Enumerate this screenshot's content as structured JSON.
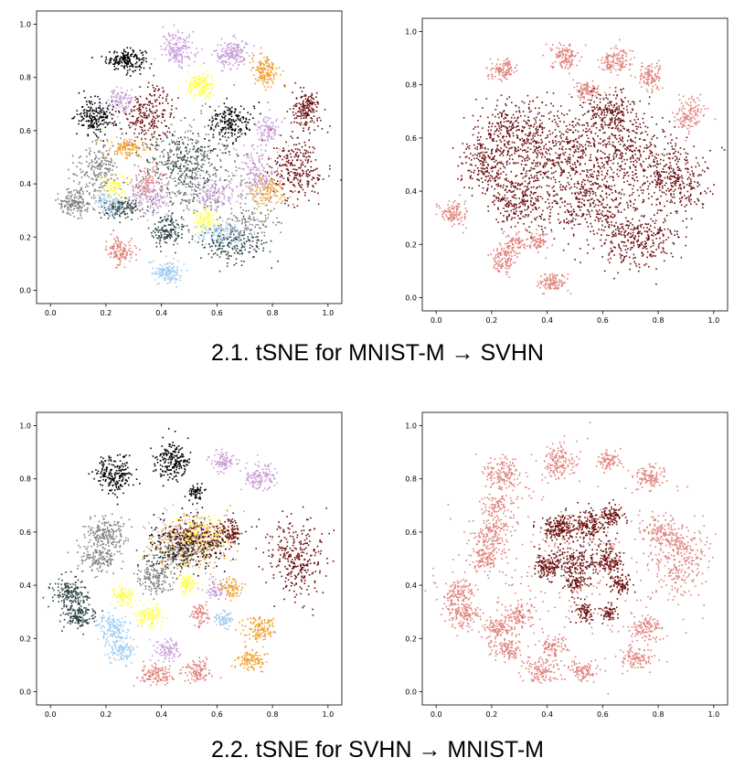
{
  "captions": {
    "row1": "2.1. tSNE for MNIST-M → SVHN",
    "row2": "2.2. tSNE for SVHN → MNIST-M"
  },
  "chart_data": [
    {
      "type": "scatter",
      "title": "",
      "xlabel": "",
      "ylabel": "",
      "xlim": [
        -0.05,
        1.05
      ],
      "ylim": [
        -0.05,
        1.05
      ],
      "xticks": [
        "0.0",
        "0.2",
        "0.4",
        "0.6",
        "0.8",
        "1.0"
      ],
      "yticks": [
        "0.0",
        "0.2",
        "0.4",
        "0.6",
        "0.8",
        "1.0"
      ],
      "grid": false,
      "coloring": "class",
      "clusters": [
        {
          "x": 0.27,
          "y": 0.87,
          "sx": 0.035,
          "sy": 0.02,
          "n": 180,
          "color": "#000000"
        },
        {
          "x": 0.46,
          "y": 0.91,
          "sx": 0.03,
          "sy": 0.03,
          "n": 170,
          "color": "#c89bd8"
        },
        {
          "x": 0.65,
          "y": 0.89,
          "sx": 0.03,
          "sy": 0.028,
          "n": 170,
          "color": "#c89bd8"
        },
        {
          "x": 0.77,
          "y": 0.83,
          "sx": 0.025,
          "sy": 0.03,
          "n": 150,
          "color": "#f0a030"
        },
        {
          "x": 0.54,
          "y": 0.77,
          "sx": 0.025,
          "sy": 0.025,
          "n": 150,
          "color": "#ffff44"
        },
        {
          "x": 0.92,
          "y": 0.68,
          "sx": 0.025,
          "sy": 0.035,
          "n": 170,
          "color": "#6b0d0d"
        },
        {
          "x": 0.16,
          "y": 0.66,
          "sx": 0.035,
          "sy": 0.035,
          "n": 190,
          "color": "#000000"
        },
        {
          "x": 0.35,
          "y": 0.66,
          "sx": 0.05,
          "sy": 0.05,
          "n": 240,
          "color": "#6b0d0d"
        },
        {
          "x": 0.25,
          "y": 0.72,
          "sx": 0.025,
          "sy": 0.02,
          "n": 90,
          "color": "#c89bd8"
        },
        {
          "x": 0.65,
          "y": 0.63,
          "sx": 0.04,
          "sy": 0.04,
          "n": 200,
          "color": "#000000"
        },
        {
          "x": 0.78,
          "y": 0.61,
          "sx": 0.02,
          "sy": 0.025,
          "n": 90,
          "color": "#c89bd8"
        },
        {
          "x": 0.88,
          "y": 0.46,
          "sx": 0.05,
          "sy": 0.06,
          "n": 260,
          "color": "#6b0d0d"
        },
        {
          "x": 0.28,
          "y": 0.54,
          "sx": 0.04,
          "sy": 0.02,
          "n": 120,
          "color": "#f0a030"
        },
        {
          "x": 0.17,
          "y": 0.45,
          "sx": 0.04,
          "sy": 0.05,
          "n": 200,
          "color": "#808080"
        },
        {
          "x": 0.08,
          "y": 0.33,
          "sx": 0.03,
          "sy": 0.025,
          "n": 160,
          "color": "#808080"
        },
        {
          "x": 0.25,
          "y": 0.31,
          "sx": 0.04,
          "sy": 0.02,
          "n": 140,
          "color": "#2f4444"
        },
        {
          "x": 0.42,
          "y": 0.23,
          "sx": 0.03,
          "sy": 0.025,
          "n": 150,
          "color": "#2f4444"
        },
        {
          "x": 0.65,
          "y": 0.18,
          "sx": 0.06,
          "sy": 0.03,
          "n": 200,
          "color": "#2f4444"
        },
        {
          "x": 0.25,
          "y": 0.15,
          "sx": 0.025,
          "sy": 0.025,
          "n": 130,
          "color": "#e0807a"
        },
        {
          "x": 0.42,
          "y": 0.07,
          "sx": 0.03,
          "sy": 0.02,
          "n": 140,
          "color": "#9ecbf0"
        },
        {
          "x": 0.62,
          "y": 0.22,
          "sx": 0.05,
          "sy": 0.02,
          "n": 140,
          "color": "#9ecbf0"
        },
        {
          "x": 0.78,
          "y": 0.38,
          "sx": 0.03,
          "sy": 0.03,
          "n": 140,
          "color": "#f0a030"
        },
        {
          "x": 0.58,
          "y": 0.36,
          "sx": 0.04,
          "sy": 0.03,
          "n": 140,
          "color": "#c89bd8"
        },
        {
          "x": 0.35,
          "y": 0.36,
          "sx": 0.04,
          "sy": 0.035,
          "n": 140,
          "color": "#c89bd8"
        },
        {
          "x": 0.55,
          "y": 0.27,
          "sx": 0.02,
          "sy": 0.02,
          "n": 90,
          "color": "#ffff44"
        },
        {
          "x": 0.23,
          "y": 0.39,
          "sx": 0.025,
          "sy": 0.02,
          "n": 80,
          "color": "#ffff44"
        },
        {
          "x": 0.48,
          "y": 0.48,
          "sx": 0.06,
          "sy": 0.06,
          "n": 240,
          "color": "#2f4444"
        },
        {
          "x": 0.5,
          "y": 0.44,
          "sx": 0.14,
          "sy": 0.1,
          "n": 380,
          "color": "#808080"
        },
        {
          "x": 0.74,
          "y": 0.44,
          "sx": 0.04,
          "sy": 0.05,
          "n": 150,
          "color": "#c89bd8"
        },
        {
          "x": 0.35,
          "y": 0.42,
          "sx": 0.03,
          "sy": 0.03,
          "n": 80,
          "color": "#e0807a"
        },
        {
          "x": 0.2,
          "y": 0.33,
          "sx": 0.03,
          "sy": 0.02,
          "n": 80,
          "color": "#9ecbf0"
        },
        {
          "x": 0.72,
          "y": 0.26,
          "sx": 0.05,
          "sy": 0.03,
          "n": 100,
          "color": "#808080"
        }
      ]
    },
    {
      "type": "scatter",
      "title": "",
      "xlabel": "",
      "ylabel": "",
      "xlim": [
        -0.05,
        1.05
      ],
      "ylim": [
        -0.05,
        1.05
      ],
      "xticks": [
        "0.0",
        "0.2",
        "0.4",
        "0.6",
        "0.8",
        "1.0"
      ],
      "yticks": [
        "0.0",
        "0.2",
        "0.4",
        "0.6",
        "0.8",
        "1.0"
      ],
      "grid": false,
      "coloring": "domain",
      "clusters": [
        {
          "x": 0.24,
          "y": 0.86,
          "sx": 0.025,
          "sy": 0.018,
          "n": 110,
          "color": "#e0807a"
        },
        {
          "x": 0.46,
          "y": 0.91,
          "sx": 0.025,
          "sy": 0.025,
          "n": 120,
          "color": "#e0807a"
        },
        {
          "x": 0.64,
          "y": 0.89,
          "sx": 0.03,
          "sy": 0.025,
          "n": 130,
          "color": "#e0807a"
        },
        {
          "x": 0.77,
          "y": 0.83,
          "sx": 0.022,
          "sy": 0.025,
          "n": 110,
          "color": "#e0807a"
        },
        {
          "x": 0.54,
          "y": 0.78,
          "sx": 0.022,
          "sy": 0.02,
          "n": 100,
          "color": "#e0807a"
        },
        {
          "x": 0.91,
          "y": 0.69,
          "sx": 0.025,
          "sy": 0.03,
          "n": 120,
          "color": "#e0807a"
        },
        {
          "x": 0.06,
          "y": 0.32,
          "sx": 0.025,
          "sy": 0.025,
          "n": 110,
          "color": "#e0807a"
        },
        {
          "x": 0.24,
          "y": 0.15,
          "sx": 0.022,
          "sy": 0.025,
          "n": 110,
          "color": "#e0807a"
        },
        {
          "x": 0.42,
          "y": 0.06,
          "sx": 0.025,
          "sy": 0.018,
          "n": 110,
          "color": "#e0807a"
        },
        {
          "x": 0.37,
          "y": 0.21,
          "sx": 0.02,
          "sy": 0.02,
          "n": 70,
          "color": "#e0807a"
        },
        {
          "x": 0.28,
          "y": 0.21,
          "sx": 0.02,
          "sy": 0.02,
          "n": 70,
          "color": "#e0807a"
        },
        {
          "x": 0.28,
          "y": 0.62,
          "sx": 0.07,
          "sy": 0.07,
          "n": 340,
          "color": "#6b0d0d"
        },
        {
          "x": 0.45,
          "y": 0.55,
          "sx": 0.08,
          "sy": 0.08,
          "n": 360,
          "color": "#6b0d0d"
        },
        {
          "x": 0.68,
          "y": 0.55,
          "sx": 0.08,
          "sy": 0.08,
          "n": 360,
          "color": "#6b0d0d"
        },
        {
          "x": 0.85,
          "y": 0.44,
          "sx": 0.06,
          "sy": 0.07,
          "n": 320,
          "color": "#6b0d0d"
        },
        {
          "x": 0.3,
          "y": 0.38,
          "sx": 0.06,
          "sy": 0.06,
          "n": 300,
          "color": "#6b0d0d"
        },
        {
          "x": 0.55,
          "y": 0.35,
          "sx": 0.08,
          "sy": 0.06,
          "n": 320,
          "color": "#6b0d0d"
        },
        {
          "x": 0.72,
          "y": 0.22,
          "sx": 0.07,
          "sy": 0.05,
          "n": 300,
          "color": "#6b0d0d"
        },
        {
          "x": 0.17,
          "y": 0.5,
          "sx": 0.04,
          "sy": 0.05,
          "n": 180,
          "color": "#6b0d0d"
        },
        {
          "x": 0.62,
          "y": 0.7,
          "sx": 0.06,
          "sy": 0.04,
          "n": 200,
          "color": "#6b0d0d"
        }
      ]
    },
    {
      "type": "scatter",
      "title": "",
      "xlabel": "",
      "ylabel": "",
      "xlim": [
        -0.05,
        1.05
      ],
      "ylim": [
        -0.05,
        1.05
      ],
      "xticks": [
        "0.0",
        "0.2",
        "0.4",
        "0.6",
        "0.8",
        "1.0"
      ],
      "yticks": [
        "0.0",
        "0.2",
        "0.4",
        "0.6",
        "0.8",
        "1.0"
      ],
      "grid": false,
      "coloring": "class",
      "clusters": [
        {
          "x": 0.23,
          "y": 0.82,
          "sx": 0.035,
          "sy": 0.035,
          "n": 200,
          "color": "#000000"
        },
        {
          "x": 0.44,
          "y": 0.87,
          "sx": 0.03,
          "sy": 0.035,
          "n": 190,
          "color": "#000000"
        },
        {
          "x": 0.62,
          "y": 0.87,
          "sx": 0.02,
          "sy": 0.02,
          "n": 90,
          "color": "#c89bd8"
        },
        {
          "x": 0.75,
          "y": 0.81,
          "sx": 0.03,
          "sy": 0.025,
          "n": 130,
          "color": "#c89bd8"
        },
        {
          "x": 0.52,
          "y": 0.75,
          "sx": 0.015,
          "sy": 0.015,
          "n": 60,
          "color": "#000000"
        },
        {
          "x": 0.88,
          "y": 0.5,
          "sx": 0.05,
          "sy": 0.07,
          "n": 300,
          "color": "#6b0d0d"
        },
        {
          "x": 0.64,
          "y": 0.6,
          "sx": 0.025,
          "sy": 0.03,
          "n": 110,
          "color": "#6b0d0d"
        },
        {
          "x": 0.2,
          "y": 0.6,
          "sx": 0.035,
          "sy": 0.03,
          "n": 170,
          "color": "#808080"
        },
        {
          "x": 0.17,
          "y": 0.51,
          "sx": 0.035,
          "sy": 0.03,
          "n": 160,
          "color": "#808080"
        },
        {
          "x": 0.07,
          "y": 0.37,
          "sx": 0.035,
          "sy": 0.03,
          "n": 170,
          "color": "#2f4444"
        },
        {
          "x": 0.1,
          "y": 0.29,
          "sx": 0.03,
          "sy": 0.025,
          "n": 150,
          "color": "#2f4444"
        },
        {
          "x": 0.37,
          "y": 0.43,
          "sx": 0.03,
          "sy": 0.03,
          "n": 150,
          "color": "#808080"
        },
        {
          "x": 0.26,
          "y": 0.36,
          "sx": 0.02,
          "sy": 0.02,
          "n": 90,
          "color": "#ffff44"
        },
        {
          "x": 0.35,
          "y": 0.29,
          "sx": 0.025,
          "sy": 0.025,
          "n": 110,
          "color": "#ffff44"
        },
        {
          "x": 0.49,
          "y": 0.41,
          "sx": 0.02,
          "sy": 0.018,
          "n": 80,
          "color": "#ffff44"
        },
        {
          "x": 0.22,
          "y": 0.24,
          "sx": 0.03,
          "sy": 0.025,
          "n": 130,
          "color": "#9ecbf0"
        },
        {
          "x": 0.25,
          "y": 0.16,
          "sx": 0.03,
          "sy": 0.02,
          "n": 110,
          "color": "#9ecbf0"
        },
        {
          "x": 0.62,
          "y": 0.28,
          "sx": 0.018,
          "sy": 0.018,
          "n": 70,
          "color": "#9ecbf0"
        },
        {
          "x": 0.42,
          "y": 0.16,
          "sx": 0.025,
          "sy": 0.02,
          "n": 90,
          "color": "#c89bd8"
        },
        {
          "x": 0.59,
          "y": 0.39,
          "sx": 0.02,
          "sy": 0.02,
          "n": 70,
          "color": "#c89bd8"
        },
        {
          "x": 0.54,
          "y": 0.29,
          "sx": 0.018,
          "sy": 0.02,
          "n": 70,
          "color": "#e0807a"
        },
        {
          "x": 0.38,
          "y": 0.07,
          "sx": 0.035,
          "sy": 0.02,
          "n": 120,
          "color": "#e0807a"
        },
        {
          "x": 0.53,
          "y": 0.08,
          "sx": 0.025,
          "sy": 0.02,
          "n": 100,
          "color": "#e0807a"
        },
        {
          "x": 0.75,
          "y": 0.24,
          "sx": 0.03,
          "sy": 0.025,
          "n": 130,
          "color": "#f0a030"
        },
        {
          "x": 0.72,
          "y": 0.12,
          "sx": 0.025,
          "sy": 0.02,
          "n": 110,
          "color": "#f0a030"
        },
        {
          "x": 0.65,
          "y": 0.39,
          "sx": 0.02,
          "sy": 0.02,
          "n": 80,
          "color": "#f0a030"
        },
        {
          "x": 0.5,
          "y": 0.56,
          "sx": 0.08,
          "sy": 0.05,
          "n": 320,
          "color": "#f0a030"
        },
        {
          "x": 0.5,
          "y": 0.56,
          "sx": 0.08,
          "sy": 0.05,
          "n": 220,
          "color": "#000000"
        },
        {
          "x": 0.48,
          "y": 0.58,
          "sx": 0.06,
          "sy": 0.04,
          "n": 150,
          "color": "#c89bd8"
        },
        {
          "x": 0.45,
          "y": 0.52,
          "sx": 0.05,
          "sy": 0.04,
          "n": 130,
          "color": "#2f4444"
        },
        {
          "x": 0.52,
          "y": 0.6,
          "sx": 0.05,
          "sy": 0.04,
          "n": 120,
          "color": "#ffff44"
        },
        {
          "x": 0.53,
          "y": 0.58,
          "sx": 0.05,
          "sy": 0.03,
          "n": 120,
          "color": "#6b0d0d"
        }
      ]
    },
    {
      "type": "scatter",
      "title": "",
      "xlabel": "",
      "ylabel": "",
      "xlim": [
        -0.05,
        1.05
      ],
      "ylim": [
        -0.05,
        1.05
      ],
      "xticks": [
        "0.0",
        "0.2",
        "0.4",
        "0.6",
        "0.8",
        "1.0"
      ],
      "yticks": [
        "0.0",
        "0.2",
        "0.4",
        "0.6",
        "0.8",
        "1.0"
      ],
      "grid": false,
      "coloring": "domain",
      "clusters": [
        {
          "x": 0.24,
          "y": 0.82,
          "sx": 0.035,
          "sy": 0.035,
          "n": 150,
          "color": "#e0807a"
        },
        {
          "x": 0.44,
          "y": 0.87,
          "sx": 0.035,
          "sy": 0.035,
          "n": 150,
          "color": "#e0807a"
        },
        {
          "x": 0.62,
          "y": 0.87,
          "sx": 0.02,
          "sy": 0.02,
          "n": 80,
          "color": "#e0807a"
        },
        {
          "x": 0.76,
          "y": 0.81,
          "sx": 0.03,
          "sy": 0.025,
          "n": 110,
          "color": "#e0807a"
        },
        {
          "x": 0.2,
          "y": 0.6,
          "sx": 0.035,
          "sy": 0.03,
          "n": 130,
          "color": "#e0807a"
        },
        {
          "x": 0.17,
          "y": 0.51,
          "sx": 0.035,
          "sy": 0.03,
          "n": 130,
          "color": "#e0807a"
        },
        {
          "x": 0.07,
          "y": 0.37,
          "sx": 0.035,
          "sy": 0.03,
          "n": 130,
          "color": "#e0807a"
        },
        {
          "x": 0.1,
          "y": 0.29,
          "sx": 0.03,
          "sy": 0.025,
          "n": 120,
          "color": "#e0807a"
        },
        {
          "x": 0.88,
          "y": 0.5,
          "sx": 0.05,
          "sy": 0.07,
          "n": 260,
          "color": "#e0807a"
        },
        {
          "x": 0.8,
          "y": 0.6,
          "sx": 0.035,
          "sy": 0.03,
          "n": 130,
          "color": "#e0807a"
        },
        {
          "x": 0.22,
          "y": 0.24,
          "sx": 0.03,
          "sy": 0.025,
          "n": 110,
          "color": "#e0807a"
        },
        {
          "x": 0.25,
          "y": 0.16,
          "sx": 0.03,
          "sy": 0.02,
          "n": 100,
          "color": "#e0807a"
        },
        {
          "x": 0.38,
          "y": 0.08,
          "sx": 0.035,
          "sy": 0.025,
          "n": 110,
          "color": "#e0807a"
        },
        {
          "x": 0.53,
          "y": 0.08,
          "sx": 0.025,
          "sy": 0.02,
          "n": 90,
          "color": "#e0807a"
        },
        {
          "x": 0.72,
          "y": 0.13,
          "sx": 0.03,
          "sy": 0.02,
          "n": 100,
          "color": "#e0807a"
        },
        {
          "x": 0.76,
          "y": 0.24,
          "sx": 0.03,
          "sy": 0.025,
          "n": 110,
          "color": "#e0807a"
        },
        {
          "x": 0.42,
          "y": 0.17,
          "sx": 0.025,
          "sy": 0.02,
          "n": 80,
          "color": "#e0807a"
        },
        {
          "x": 0.3,
          "y": 0.29,
          "sx": 0.03,
          "sy": 0.025,
          "n": 100,
          "color": "#e0807a"
        },
        {
          "x": 0.22,
          "y": 0.7,
          "sx": 0.03,
          "sy": 0.025,
          "n": 90,
          "color": "#e0807a"
        },
        {
          "x": 0.5,
          "y": 0.45,
          "sx": 0.2,
          "sy": 0.18,
          "n": 300,
          "color": "#e0807a"
        },
        {
          "x": 0.44,
          "y": 0.62,
          "sx": 0.03,
          "sy": 0.025,
          "n": 170,
          "color": "#6b0d0d"
        },
        {
          "x": 0.55,
          "y": 0.63,
          "sx": 0.035,
          "sy": 0.03,
          "n": 170,
          "color": "#6b0d0d"
        },
        {
          "x": 0.63,
          "y": 0.66,
          "sx": 0.02,
          "sy": 0.02,
          "n": 90,
          "color": "#6b0d0d"
        },
        {
          "x": 0.4,
          "y": 0.47,
          "sx": 0.025,
          "sy": 0.025,
          "n": 130,
          "color": "#6b0d0d"
        },
        {
          "x": 0.5,
          "y": 0.49,
          "sx": 0.035,
          "sy": 0.03,
          "n": 150,
          "color": "#6b0d0d"
        },
        {
          "x": 0.62,
          "y": 0.5,
          "sx": 0.03,
          "sy": 0.03,
          "n": 140,
          "color": "#6b0d0d"
        },
        {
          "x": 0.66,
          "y": 0.41,
          "sx": 0.02,
          "sy": 0.02,
          "n": 90,
          "color": "#6b0d0d"
        },
        {
          "x": 0.5,
          "y": 0.41,
          "sx": 0.02,
          "sy": 0.018,
          "n": 80,
          "color": "#6b0d0d"
        },
        {
          "x": 0.53,
          "y": 0.3,
          "sx": 0.015,
          "sy": 0.02,
          "n": 70,
          "color": "#6b0d0d"
        },
        {
          "x": 0.62,
          "y": 0.3,
          "sx": 0.015,
          "sy": 0.015,
          "n": 60,
          "color": "#6b0d0d"
        }
      ]
    }
  ]
}
